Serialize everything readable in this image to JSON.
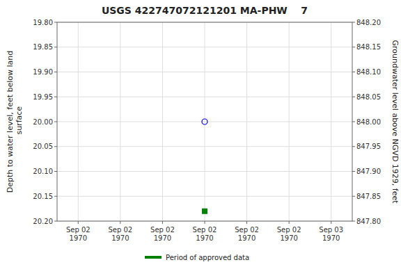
{
  "chart_data": {
    "type": "scatter",
    "title": "USGS 422747072121201 MA-PHW    7",
    "categories": [
      "Sep 02\n1970",
      "Sep 02\n1970",
      "Sep 02\n1970",
      "Sep 02\n1970",
      "Sep 02\n1970",
      "Sep 02\n1970",
      "Sep 03\n1970"
    ],
    "ylabel": "Depth to water level, feet below land\n surface",
    "y2label": "Groundwater level above NGVD 1929, feet",
    "ylim": [
      20.2,
      19.8
    ],
    "yticks": [
      {
        "value": 19.8,
        "label": "19.80"
      },
      {
        "value": 19.85,
        "label": "19.85"
      },
      {
        "value": 19.9,
        "label": "19.90"
      },
      {
        "value": 19.95,
        "label": "19.95"
      },
      {
        "value": 20.0,
        "label": "20.00"
      },
      {
        "value": 20.05,
        "label": "20.05"
      },
      {
        "value": 20.1,
        "label": "20.10"
      },
      {
        "value": 20.15,
        "label": "20.15"
      },
      {
        "value": 20.2,
        "label": "20.20"
      }
    ],
    "y2lim": [
      847.8,
      848.2
    ],
    "y2ticks": [
      {
        "value": 848.2,
        "label": "848.20"
      },
      {
        "value": 848.15,
        "label": "848.15"
      },
      {
        "value": 848.1,
        "label": "848.10"
      },
      {
        "value": 848.05,
        "label": "848.05"
      },
      {
        "value": 848.0,
        "label": "848.00"
      },
      {
        "value": 847.95,
        "label": "847.95"
      },
      {
        "value": 847.9,
        "label": "847.90"
      },
      {
        "value": 847.85,
        "label": "847.85"
      },
      {
        "value": 847.8,
        "label": "847.80"
      }
    ],
    "series": [
      {
        "color": "blue",
        "marker": "open-circle",
        "values": [
          null,
          null,
          null,
          20.0,
          null,
          null,
          null
        ]
      },
      {
        "name": "Period of approved data",
        "color": "green",
        "marker": "square",
        "values": [
          null,
          null,
          null,
          20.18,
          null,
          null,
          null
        ]
      }
    ],
    "grid": true,
    "legend": "bottom"
  }
}
